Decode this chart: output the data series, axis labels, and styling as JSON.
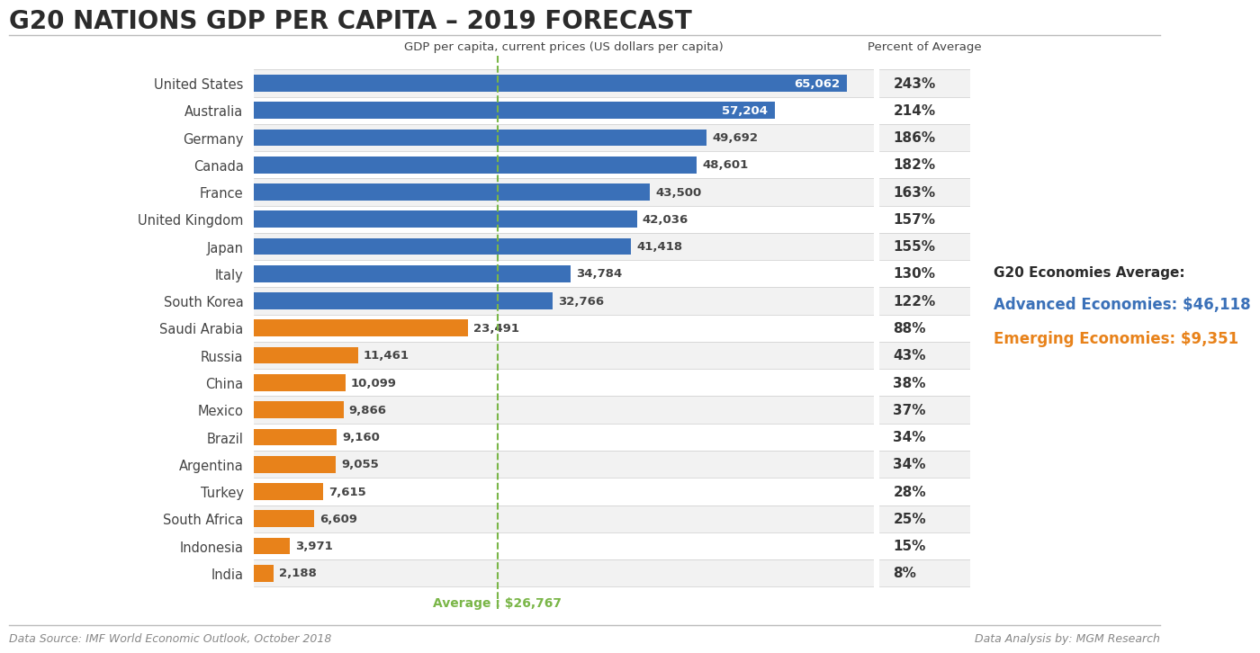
{
  "title": "G20 NATIONS GDP PER CAPITA – 2019 FORECAST",
  "subtitle": "GDP per capita, current prices (US dollars per capita)",
  "subtitle2": "Percent of Average",
  "countries": [
    "United States",
    "Australia",
    "Germany",
    "Canada",
    "France",
    "United Kingdom",
    "Japan",
    "Italy",
    "South Korea",
    "Saudi Arabia",
    "Russia",
    "China",
    "Mexico",
    "Brazil",
    "Argentina",
    "Turkey",
    "South Africa",
    "Indonesia",
    "India"
  ],
  "values": [
    65062,
    57204,
    49692,
    48601,
    43500,
    42036,
    41418,
    34784,
    32766,
    23491,
    11461,
    10099,
    9866,
    9160,
    9055,
    7615,
    6609,
    3971,
    2188
  ],
  "percents": [
    "243%",
    "214%",
    "186%",
    "182%",
    "163%",
    "157%",
    "155%",
    "130%",
    "122%",
    "88%",
    "43%",
    "38%",
    "37%",
    "34%",
    "34%",
    "28%",
    "25%",
    "15%",
    "8%"
  ],
  "colors": [
    "#3A70B8",
    "#3A70B8",
    "#3A70B8",
    "#3A70B8",
    "#3A70B8",
    "#3A70B8",
    "#3A70B8",
    "#3A70B8",
    "#3A70B8",
    "#E8821A",
    "#E8821A",
    "#E8821A",
    "#E8821A",
    "#E8821A",
    "#E8821A",
    "#E8821A",
    "#E8821A",
    "#E8821A",
    "#E8821A"
  ],
  "average_value": 26767,
  "average_label": "Average : $26,767",
  "legend_title": "G20 Economies Average:",
  "legend_advanced": "Advanced Economies: $46,118",
  "legend_emerging": "Emerging Economies: $9,351",
  "footer_left": "Data Source: IMF World Economic Outlook, October 2018",
  "footer_right": "Data Analysis by: MGM Research",
  "title_fontsize": 20,
  "subtitle_fontsize": 9.5,
  "bar_label_fontsize": 9.5,
  "percent_fontsize": 11,
  "country_fontsize": 10.5,
  "legend_title_fontsize": 11,
  "legend_text_fontsize": 12,
  "bg_color": "#FFFFFF",
  "row_alt_color": "#F2F2F2",
  "row_main_color": "#FFFFFF",
  "blue_color": "#3A70B8",
  "orange_color": "#E8821A",
  "green_color": "#7AB648",
  "title_color": "#2B2B2B",
  "text_color": "#444444",
  "percent_color": "#333333",
  "footer_color": "#888888",
  "bar_xlim": 68000,
  "bar_height": 0.62
}
